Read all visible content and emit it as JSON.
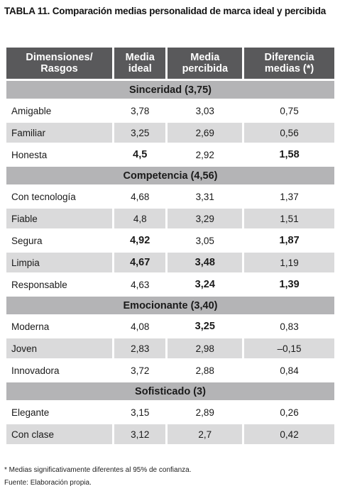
{
  "title": "TABLA 11. Comparación medias personalidad de marca ideal y percibida",
  "headers": {
    "col1": "Dimensiones/\nRasgos",
    "col2": "Media\nideal",
    "col3": "Media\npercibida",
    "col4": "Diferencia\nmedias (*)"
  },
  "sections": [
    {
      "label": "Sinceridad (3,75)",
      "rows": [
        {
          "trait": "Amigable",
          "ideal": "3,78",
          "perceived": "3,03",
          "diff": "0,75",
          "bold": []
        },
        {
          "trait": "Familiar",
          "ideal": "3,25",
          "perceived": "2,69",
          "diff": "0,56",
          "bold": []
        },
        {
          "trait": "Honesta",
          "ideal": "4,5",
          "perceived": "2,92",
          "diff": "1,58",
          "bold": [
            "ideal",
            "diff"
          ]
        }
      ]
    },
    {
      "label": "Competencia (4,56)",
      "rows": [
        {
          "trait": "Con tecnología",
          "ideal": "4,68",
          "perceived": "3,31",
          "diff": "1,37",
          "bold": []
        },
        {
          "trait": "Fiable",
          "ideal": "4,8",
          "perceived": "3,29",
          "diff": "1,51",
          "bold": []
        },
        {
          "trait": "Segura",
          "ideal": "4,92",
          "perceived": "3,05",
          "diff": "1,87",
          "bold": [
            "ideal",
            "diff"
          ]
        },
        {
          "trait": "Limpia",
          "ideal": "4,67",
          "perceived": "3,48",
          "diff": "1,19",
          "bold": [
            "ideal",
            "perceived"
          ]
        },
        {
          "trait": "Responsable",
          "ideal": "4,63",
          "perceived": "3,24",
          "diff": "1,39",
          "bold": [
            "perceived",
            "diff"
          ]
        }
      ]
    },
    {
      "label": "Emocionante (3,40)",
      "rows": [
        {
          "trait": "Moderna",
          "ideal": "4,08",
          "perceived": "3,25",
          "diff": "0,83",
          "bold": [
            "perceived"
          ]
        },
        {
          "trait": "Joven",
          "ideal": "2,83",
          "perceived": "2,98",
          "diff": "–0,15",
          "bold": []
        },
        {
          "trait": "Innovadora",
          "ideal": "3,72",
          "perceived": "2,88",
          "diff": "0,84",
          "bold": []
        }
      ]
    },
    {
      "label": "Sofisticado (3)",
      "rows": [
        {
          "trait": "Elegante",
          "ideal": "3,15",
          "perceived": "2,89",
          "diff": "0,26",
          "bold": []
        },
        {
          "trait": "Con clase",
          "ideal": "3,12",
          "perceived": "2,7",
          "diff": "0,42",
          "bold": []
        }
      ]
    }
  ],
  "footnote": "* Medias significativamente diferentes al 95% de confianza.",
  "source": "Fuente: Elaboración propia.",
  "colors": {
    "header_bg": "#59595b",
    "section_bg": "#b4b4b6",
    "row_alt_bg": "#dadadb"
  }
}
